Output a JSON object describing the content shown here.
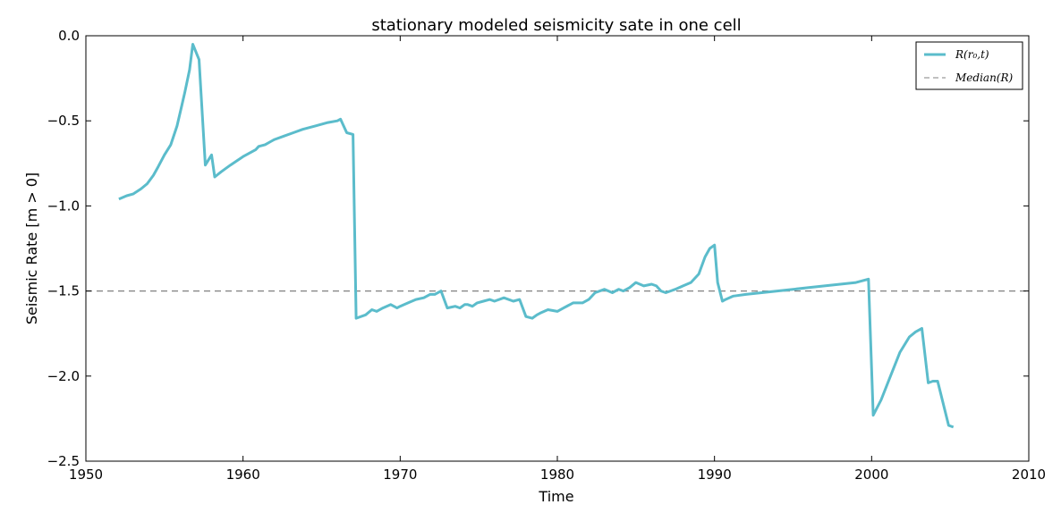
{
  "chart_data": {
    "type": "line",
    "title": "stationary modeled seismicity sate in one cell",
    "xlabel": "Time",
    "ylabel": "Seismic Rate [m > 0]",
    "xlim": [
      1950,
      2010
    ],
    "ylim": [
      -2.5,
      0.0
    ],
    "xticks": [
      1950,
      1960,
      1970,
      1980,
      1990,
      2000,
      2010
    ],
    "yticks": [
      0.0,
      -0.5,
      -1.0,
      -1.5,
      -2.0,
      -2.5
    ],
    "xtick_labels": [
      "1950",
      "1960",
      "1970",
      "1980",
      "1990",
      "2000",
      "2010"
    ],
    "ytick_labels": [
      "0.0",
      "−0.5",
      "−1.0",
      "−1.5",
      "−2.0",
      "−2.5"
    ],
    "grid": false,
    "legend_position": "top-right",
    "series": [
      {
        "name": "R(r₀,t)",
        "color": "#5bbccb",
        "style": "solid",
        "x": [
          1952.1,
          1952.6,
          1953.0,
          1953.5,
          1953.9,
          1954.3,
          1954.6,
          1955.0,
          1955.4,
          1955.8,
          1956.1,
          1956.3,
          1956.6,
          1956.8,
          1957.2,
          1957.6,
          1958.0,
          1958.2,
          1958.6,
          1959.2,
          1960.0,
          1960.8,
          1961.0,
          1961.4,
          1961.8,
          1962.0,
          1962.6,
          1963.2,
          1963.8,
          1964.6,
          1965.4,
          1966.0,
          1966.2,
          1966.6,
          1967.0,
          1967.2,
          1967.8,
          1968.2,
          1968.5,
          1968.9,
          1969.4,
          1969.8,
          1970.0,
          1970.5,
          1971.0,
          1971.5,
          1971.9,
          1972.2,
          1972.6,
          1973.0,
          1973.5,
          1973.8,
          1974.1,
          1974.3,
          1974.6,
          1974.9,
          1975.3,
          1975.7,
          1976.0,
          1976.6,
          1977.2,
          1977.6,
          1978.0,
          1978.4,
          1978.7,
          1978.9,
          1979.4,
          1980.0,
          1980.4,
          1980.8,
          1981.0,
          1981.6,
          1982.0,
          1982.4,
          1983.0,
          1983.5,
          1983.9,
          1984.2,
          1984.6,
          1985.0,
          1985.5,
          1986.0,
          1986.3,
          1986.6,
          1986.9,
          1987.2,
          1987.5,
          1988.0,
          1988.5,
          1989.0,
          1989.4,
          1989.7,
          1990.0,
          1990.2,
          1990.5,
          1990.7,
          1991.2,
          1992.0,
          1993.0,
          1994.0,
          1995.0,
          1996.0,
          1997.0,
          1998.0,
          1999.0,
          1999.8,
          2000.1,
          2000.6,
          2001.2,
          2001.8,
          2002.4,
          2002.8,
          2003.2,
          2003.6,
          2003.9,
          2004.2,
          2004.9,
          2005.2
        ],
        "y": [
          -0.96,
          -0.94,
          -0.93,
          -0.9,
          -0.87,
          -0.82,
          -0.77,
          -0.7,
          -0.64,
          -0.53,
          -0.41,
          -0.33,
          -0.2,
          -0.05,
          -0.14,
          -0.76,
          -0.7,
          -0.83,
          -0.8,
          -0.76,
          -0.71,
          -0.67,
          -0.65,
          -0.64,
          -0.62,
          -0.61,
          -0.59,
          -0.57,
          -0.55,
          -0.53,
          -0.51,
          -0.5,
          -0.49,
          -0.57,
          -0.58,
          -1.66,
          -1.64,
          -1.61,
          -1.62,
          -1.6,
          -1.58,
          -1.6,
          -1.59,
          -1.57,
          -1.55,
          -1.54,
          -1.52,
          -1.52,
          -1.5,
          -1.6,
          -1.59,
          -1.6,
          -1.58,
          -1.58,
          -1.59,
          -1.57,
          -1.56,
          -1.55,
          -1.56,
          -1.54,
          -1.56,
          -1.55,
          -1.65,
          -1.66,
          -1.64,
          -1.63,
          -1.61,
          -1.62,
          -1.6,
          -1.58,
          -1.57,
          -1.57,
          -1.55,
          -1.51,
          -1.49,
          -1.51,
          -1.49,
          -1.5,
          -1.48,
          -1.45,
          -1.47,
          -1.46,
          -1.47,
          -1.5,
          -1.51,
          -1.5,
          -1.49,
          -1.47,
          -1.45,
          -1.4,
          -1.3,
          -1.25,
          -1.23,
          -1.45,
          -1.56,
          -1.55,
          -1.53,
          -1.52,
          -1.51,
          -1.5,
          -1.49,
          -1.48,
          -1.47,
          -1.46,
          -1.45,
          -1.43,
          -2.23,
          -2.14,
          -2.0,
          -1.86,
          -1.77,
          -1.74,
          -1.72,
          -2.04,
          -2.03,
          -2.03,
          -2.29,
          -2.3
        ]
      },
      {
        "name": "Median(R)",
        "color": "#808080",
        "style": "dashed",
        "x": [
          1950,
          2010
        ],
        "y": [
          -1.5,
          -1.5
        ]
      }
    ]
  }
}
